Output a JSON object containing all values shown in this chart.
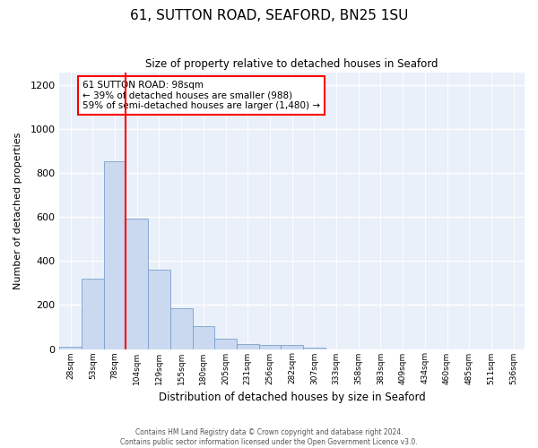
{
  "title": "61, SUTTON ROAD, SEAFORD, BN25 1SU",
  "subtitle": "Size of property relative to detached houses in Seaford",
  "xlabel": "Distribution of detached houses by size in Seaford",
  "ylabel": "Number of detached properties",
  "bar_color": "#cad9f0",
  "bar_edge_color": "#7aa0cc",
  "background_color": "#eaf0fa",
  "bin_labels": [
    "28sqm",
    "53sqm",
    "78sqm",
    "104sqm",
    "129sqm",
    "155sqm",
    "180sqm",
    "205sqm",
    "231sqm",
    "256sqm",
    "282sqm",
    "307sqm",
    "333sqm",
    "358sqm",
    "383sqm",
    "409sqm",
    "434sqm",
    "460sqm",
    "485sqm",
    "511sqm",
    "536sqm"
  ],
  "bar_heights": [
    10,
    320,
    855,
    595,
    360,
    185,
    105,
    48,
    22,
    20,
    20,
    5,
    0,
    0,
    0,
    0,
    0,
    0,
    0,
    0,
    0
  ],
  "ylim": [
    0,
    1260
  ],
  "yticks": [
    0,
    200,
    400,
    600,
    800,
    1000,
    1200
  ],
  "vline_x_index": 3,
  "annotation_text": "61 SUTTON ROAD: 98sqm\n← 39% of detached houses are smaller (988)\n59% of semi-detached houses are larger (1,480) →",
  "annotation_box_color": "white",
  "annotation_box_edge_color": "red",
  "footer_line1": "Contains HM Land Registry data © Crown copyright and database right 2024.",
  "footer_line2": "Contains public sector information licensed under the Open Government Licence v3.0."
}
